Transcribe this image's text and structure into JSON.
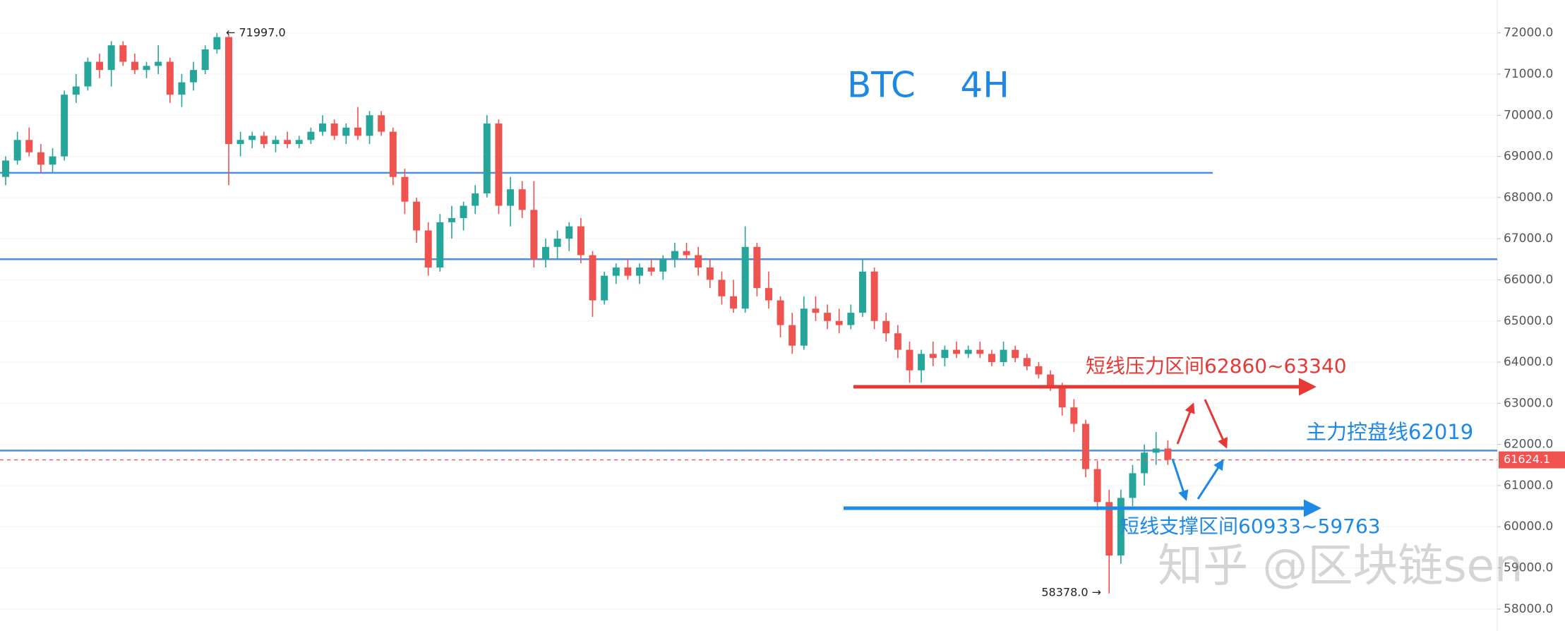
{
  "chart_data": {
    "type": "candlestick",
    "title": "BTC    4H",
    "up_color": "#26a69a",
    "down_color": "#ef5350",
    "ylim": [
      57465,
      72801
    ],
    "yticks": [
      {
        "value": 58000,
        "label": "58000.0"
      },
      {
        "value": 59000,
        "label": "59000.0"
      },
      {
        "value": 60000,
        "label": "60000.0"
      },
      {
        "value": 61000,
        "label": "61000.0"
      },
      {
        "value": 62000,
        "label": "62000.0"
      },
      {
        "value": 63000,
        "label": "63000.0"
      },
      {
        "value": 64000,
        "label": "64000.0"
      },
      {
        "value": 65000,
        "label": "65000.0"
      },
      {
        "value": 66000,
        "label": "66000.0"
      },
      {
        "value": 67000,
        "label": "67000.0"
      },
      {
        "value": 68000,
        "label": "68000.0"
      },
      {
        "value": 69000,
        "label": "69000.0"
      },
      {
        "value": 70000,
        "label": "70000.0"
      },
      {
        "value": 71000,
        "label": "71000.0"
      },
      {
        "value": 72000,
        "label": "72000.0"
      }
    ],
    "candles": [
      [
        68500,
        69000,
        68300,
        68900
      ],
      [
        68900,
        69600,
        68800,
        69400
      ],
      [
        69400,
        69700,
        69000,
        69100
      ],
      [
        69100,
        69300,
        68600,
        68800
      ],
      [
        68800,
        69200,
        68600,
        69000
      ],
      [
        69000,
        70600,
        68900,
        70500
      ],
      [
        70500,
        71000,
        70300,
        70700
      ],
      [
        70700,
        71400,
        70600,
        71300
      ],
      [
        71300,
        71500,
        70900,
        71100
      ],
      [
        71100,
        71800,
        70700,
        71700
      ],
      [
        71700,
        71800,
        71200,
        71300
      ],
      [
        71300,
        71500,
        71000,
        71100
      ],
      [
        71100,
        71300,
        70900,
        71200
      ],
      [
        71200,
        71700,
        71000,
        71300
      ],
      [
        71300,
        71400,
        70300,
        70500
      ],
      [
        70500,
        71000,
        70200,
        70800
      ],
      [
        70800,
        71300,
        70600,
        71100
      ],
      [
        71100,
        71700,
        71000,
        71600
      ],
      [
        71600,
        71997,
        71500,
        71900
      ],
      [
        71900,
        71950,
        68300,
        69300
      ],
      [
        69300,
        69600,
        69000,
        69400
      ],
      [
        69400,
        69600,
        69200,
        69500
      ],
      [
        69500,
        69600,
        69200,
        69300
      ],
      [
        69300,
        69500,
        69100,
        69400
      ],
      [
        69400,
        69600,
        69200,
        69300
      ],
      [
        69300,
        69500,
        69200,
        69400
      ],
      [
        69400,
        69700,
        69300,
        69600
      ],
      [
        69600,
        70000,
        69500,
        69800
      ],
      [
        69800,
        69900,
        69400,
        69500
      ],
      [
        69500,
        69800,
        69300,
        69700
      ],
      [
        69700,
        70200,
        69400,
        69500
      ],
      [
        69500,
        70100,
        69300,
        70000
      ],
      [
        70000,
        70100,
        69500,
        69600
      ],
      [
        69600,
        69700,
        68300,
        68500
      ],
      [
        68500,
        68700,
        67600,
        67900
      ],
      [
        67900,
        68000,
        66900,
        67200
      ],
      [
        67200,
        67400,
        66100,
        66300
      ],
      [
        66300,
        67600,
        66200,
        67400
      ],
      [
        67400,
        67800,
        67000,
        67500
      ],
      [
        67500,
        67900,
        67200,
        67800
      ],
      [
        67800,
        68300,
        67600,
        68100
      ],
      [
        68100,
        70000,
        68000,
        69800
      ],
      [
        69800,
        69900,
        67600,
        67800
      ],
      [
        67800,
        68500,
        67300,
        68200
      ],
      [
        68200,
        68400,
        67500,
        67700
      ],
      [
        67700,
        68400,
        66300,
        66500
      ],
      [
        66500,
        67000,
        66300,
        66800
      ],
      [
        66800,
        67200,
        66500,
        67000
      ],
      [
        67000,
        67400,
        66700,
        67300
      ],
      [
        67300,
        67500,
        66400,
        66600
      ],
      [
        66600,
        66700,
        65100,
        65500
      ],
      [
        65500,
        66200,
        65400,
        66100
      ],
      [
        66100,
        66400,
        65900,
        66300
      ],
      [
        66300,
        66500,
        66000,
        66100
      ],
      [
        66100,
        66400,
        65900,
        66300
      ],
      [
        66300,
        66500,
        66100,
        66200
      ],
      [
        66200,
        66600,
        66000,
        66500
      ],
      [
        66500,
        66900,
        66300,
        66700
      ],
      [
        66700,
        66900,
        66500,
        66600
      ],
      [
        66600,
        66800,
        66100,
        66300
      ],
      [
        66300,
        66500,
        65800,
        66000
      ],
      [
        66000,
        66200,
        65400,
        65600
      ],
      [
        65600,
        66000,
        65200,
        65300
      ],
      [
        65300,
        67300,
        65200,
        66800
      ],
      [
        66800,
        66900,
        65600,
        65800
      ],
      [
        65800,
        66200,
        65300,
        65500
      ],
      [
        65500,
        65600,
        64600,
        64900
      ],
      [
        64900,
        65200,
        64200,
        64400
      ],
      [
        64400,
        65600,
        64300,
        65300
      ],
      [
        65300,
        65600,
        65000,
        65200
      ],
      [
        65200,
        65400,
        64800,
        65000
      ],
      [
        65000,
        65300,
        64700,
        64900
      ],
      [
        64900,
        65400,
        64800,
        65200
      ],
      [
        65200,
        66500,
        65100,
        66200
      ],
      [
        66200,
        66300,
        64800,
        65000
      ],
      [
        65000,
        65200,
        64500,
        64700
      ],
      [
        64700,
        64900,
        64100,
        64300
      ],
      [
        64300,
        64500,
        63500,
        63800
      ],
      [
        63800,
        64300,
        63500,
        64200
      ],
      [
        64200,
        64500,
        63900,
        64100
      ],
      [
        64100,
        64400,
        63900,
        64300
      ],
      [
        64300,
        64500,
        64100,
        64200
      ],
      [
        64200,
        64400,
        64100,
        64300
      ],
      [
        64300,
        64500,
        64100,
        64200
      ],
      [
        64200,
        64300,
        63900,
        64000
      ],
      [
        64000,
        64500,
        63900,
        64300
      ],
      [
        64300,
        64400,
        64000,
        64100
      ],
      [
        64100,
        64200,
        63800,
        63900
      ],
      [
        63900,
        64000,
        63600,
        63700
      ],
      [
        63700,
        63800,
        63300,
        63400
      ],
      [
        63400,
        63500,
        62700,
        62900
      ],
      [
        62900,
        63100,
        62300,
        62500
      ],
      [
        62500,
        62600,
        61200,
        61400
      ],
      [
        61400,
        61600,
        60400,
        60600
      ],
      [
        60600,
        60900,
        58378,
        59300
      ],
      [
        59300,
        60900,
        59100,
        60700
      ],
      [
        60700,
        61500,
        60500,
        61300
      ],
      [
        61300,
        62000,
        61000,
        61800
      ],
      [
        61800,
        62300,
        61500,
        61900
      ],
      [
        61900,
        62100,
        61500,
        61624.1
      ]
    ],
    "levels": [
      {
        "value": 68600,
        "color": "#4a8fe0"
      },
      {
        "value": 66500,
        "color": "#4a8fe0"
      },
      {
        "value": 61850,
        "color": "#4a8fe0"
      }
    ],
    "zones": [
      {
        "label": "短线压力区间62860~63340",
        "value": 63400,
        "color": "#e53935"
      },
      {
        "label": "短线支撑区间60933~59763",
        "value": 60450,
        "color": "#1e88e5"
      }
    ],
    "level_label": "主力控盘线62019",
    "high_label": "← 71997.0",
    "low_label": "58378.0 →",
    "last_price": 61624.1,
    "watermark": "知乎 @区块链sen"
  }
}
